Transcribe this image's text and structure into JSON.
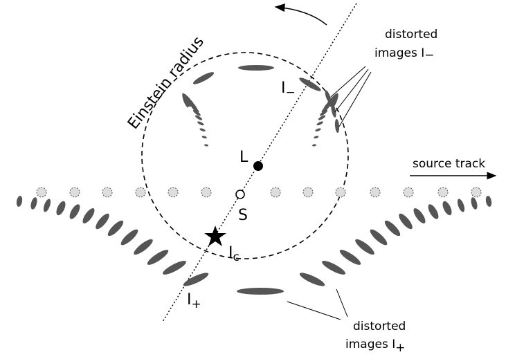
{
  "labels": {
    "einstein_radius": "Einstein radius",
    "lens": "L",
    "source": "S",
    "image_central": {
      "base": "I",
      "sub": "c"
    },
    "image_minus": {
      "base": "I",
      "sub": "−"
    },
    "image_plus": {
      "base": "I",
      "sub": "+"
    },
    "source_track": "source track",
    "distorted_minus": {
      "line1": "distorted",
      "line2": "images I",
      "sub": "−"
    },
    "distorted_plus": {
      "line1": "distorted",
      "line2": "images I",
      "sub": "+"
    }
  }
}
